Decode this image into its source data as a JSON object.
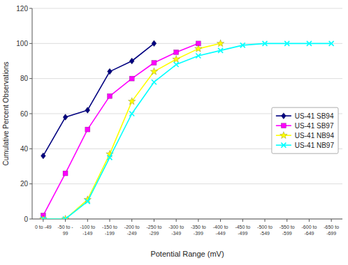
{
  "chart_data": {
    "type": "line",
    "x_label": "Potential Range (mV)",
    "y_label": "Cumulative Percent Observations",
    "categories": [
      "0 to -49",
      "-50 to -\n99",
      "-100 to\n-149",
      "-150 to\n-199",
      "-200 to\n-249",
      "-250 to\n-299",
      "-300 to\n-349",
      "-350 to\n-399",
      "-400 to\n-449",
      "-450 to\n-499",
      "-500 to\n-549",
      "-550 to\n-599",
      "-600 to\n-649",
      "-650 to\n-699"
    ],
    "series": [
      {
        "name": "US-41 SB94",
        "color": "#000080",
        "marker": "diamond",
        "values": [
          36,
          58,
          62,
          84,
          90,
          100,
          null,
          null,
          null,
          null,
          null,
          null,
          null,
          null
        ]
      },
      {
        "name": "US-41 SB97",
        "color": "#FF00FF",
        "marker": "square",
        "values": [
          2,
          26,
          51,
          70,
          80,
          89,
          95,
          100,
          null,
          null,
          null,
          null,
          null,
          null
        ]
      },
      {
        "name": "US-41 NB94",
        "color": "#FFFF00",
        "marker": "star",
        "values": [
          0,
          0,
          11,
          37,
          67,
          84,
          91,
          97,
          100,
          null,
          null,
          null,
          null,
          null
        ]
      },
      {
        "name": "US-41 NB97",
        "color": "#00FFFF",
        "marker": "x",
        "values": [
          0,
          0,
          10,
          35,
          60,
          78,
          88,
          93,
          96,
          99,
          100,
          100,
          100,
          100
        ]
      }
    ],
    "ylim": [
      0,
      120
    ],
    "yticks": [
      0,
      20,
      40,
      60,
      80,
      100,
      120
    ],
    "grid": true,
    "legend": "right"
  }
}
